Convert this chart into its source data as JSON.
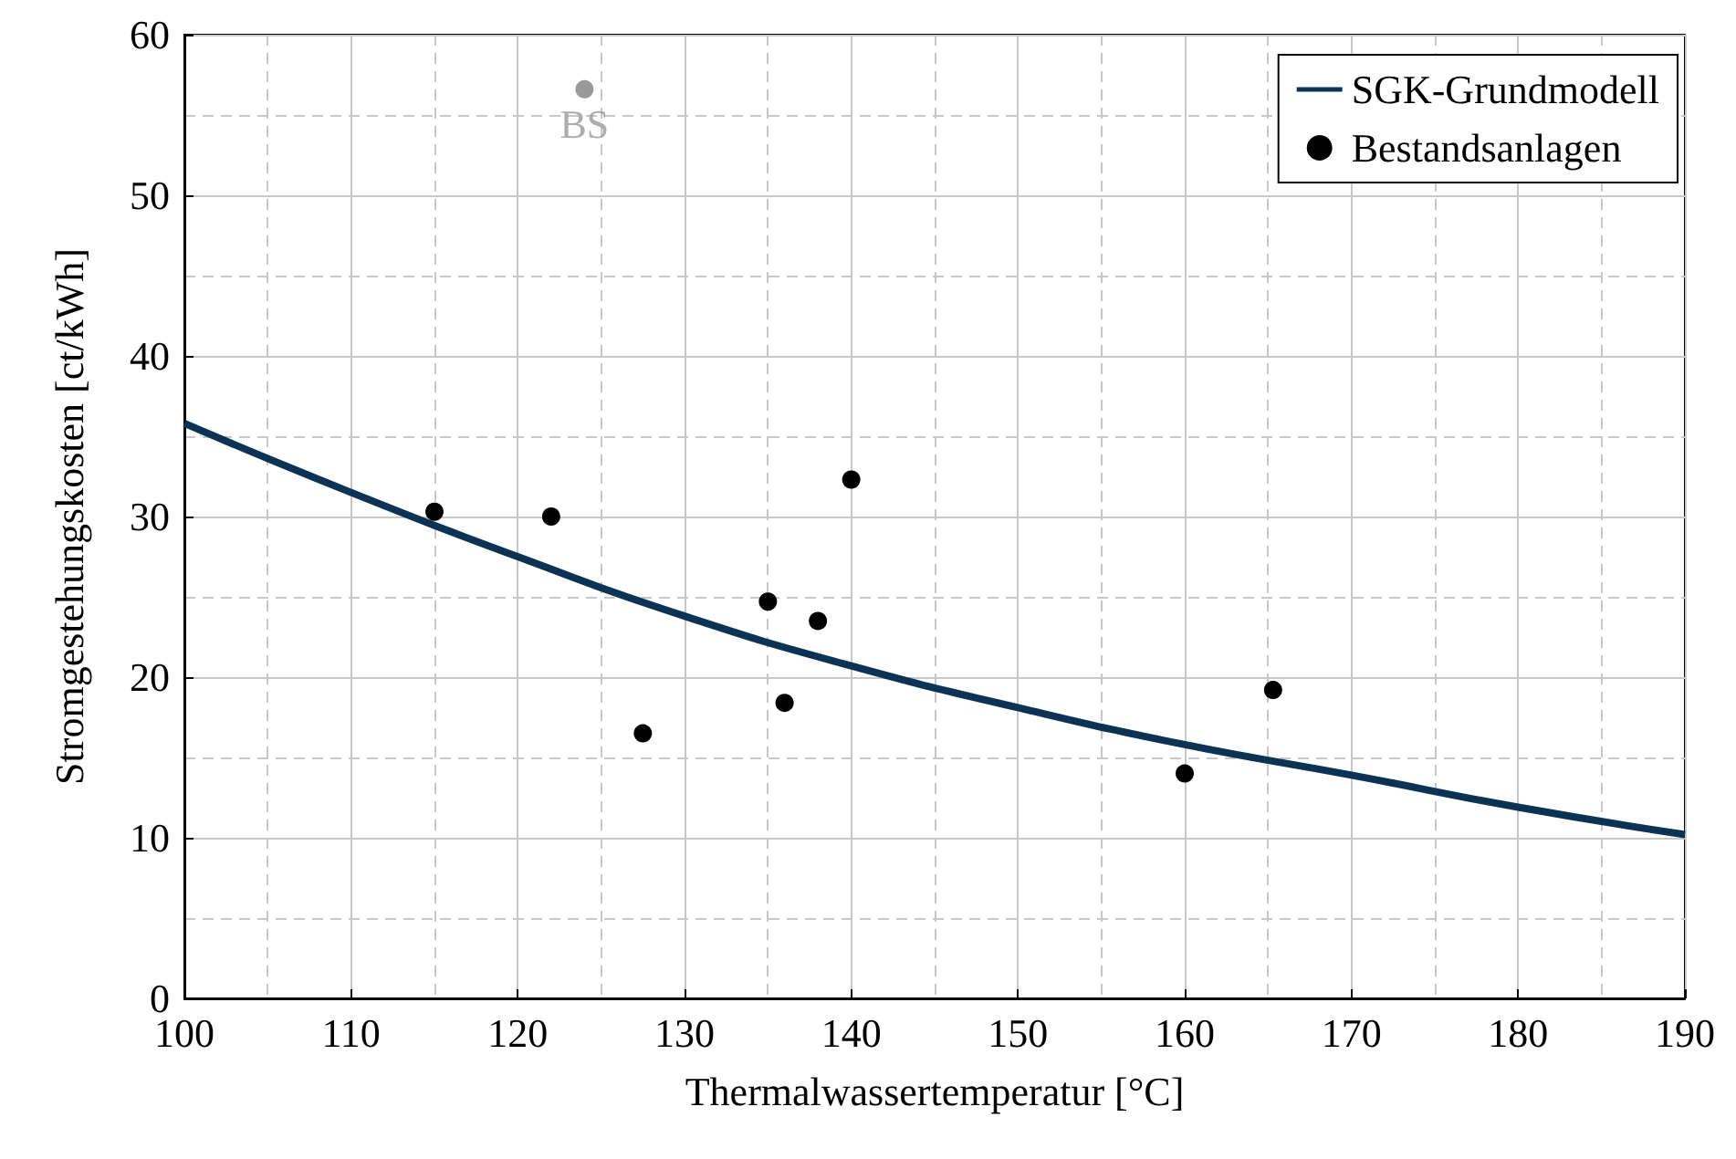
{
  "chart_data": {
    "type": "scatter",
    "xlabel": "Thermalwassertemperatur [°C]",
    "ylabel": "Stromgestehungskosten [ct/kWh]",
    "xlim": [
      100,
      190
    ],
    "xticks": [
      100,
      110,
      120,
      130,
      140,
      150,
      160,
      170,
      180,
      190
    ],
    "ylim": [
      0,
      60
    ],
    "yticks": [
      0,
      10,
      20,
      30,
      40,
      50,
      60
    ],
    "grid": true,
    "legend": "top right",
    "series": [
      {
        "name": "SGK-Grundmodell",
        "type": "line",
        "color": "#0d3354",
        "marker": "none",
        "x": [
          100,
          110,
          120,
          130,
          140,
          150,
          160,
          170,
          180,
          190
        ],
        "values": [
          35.8,
          31.5,
          27.5,
          23.8,
          20.7,
          18.1,
          15.8,
          13.9,
          11.9,
          10.2
        ]
      },
      {
        "name": "Bestandsanlagen",
        "type": "scatter",
        "color": "#000000",
        "marker": "circle",
        "x": [
          115,
          122,
          127.5,
          135,
          136,
          138,
          140,
          160,
          165.3
        ],
        "values": [
          30.3,
          30.0,
          16.5,
          24.7,
          18.4,
          23.5,
          32.3,
          14.0,
          19.2
        ]
      },
      {
        "type": "scatter",
        "color": "#999999",
        "marker": "circle",
        "x": [
          124
        ],
        "values": [
          56.6
        ]
      }
    ],
    "annotations": [
      {
        "text": "BS",
        "x": 124,
        "y": 56.6
      }
    ]
  }
}
